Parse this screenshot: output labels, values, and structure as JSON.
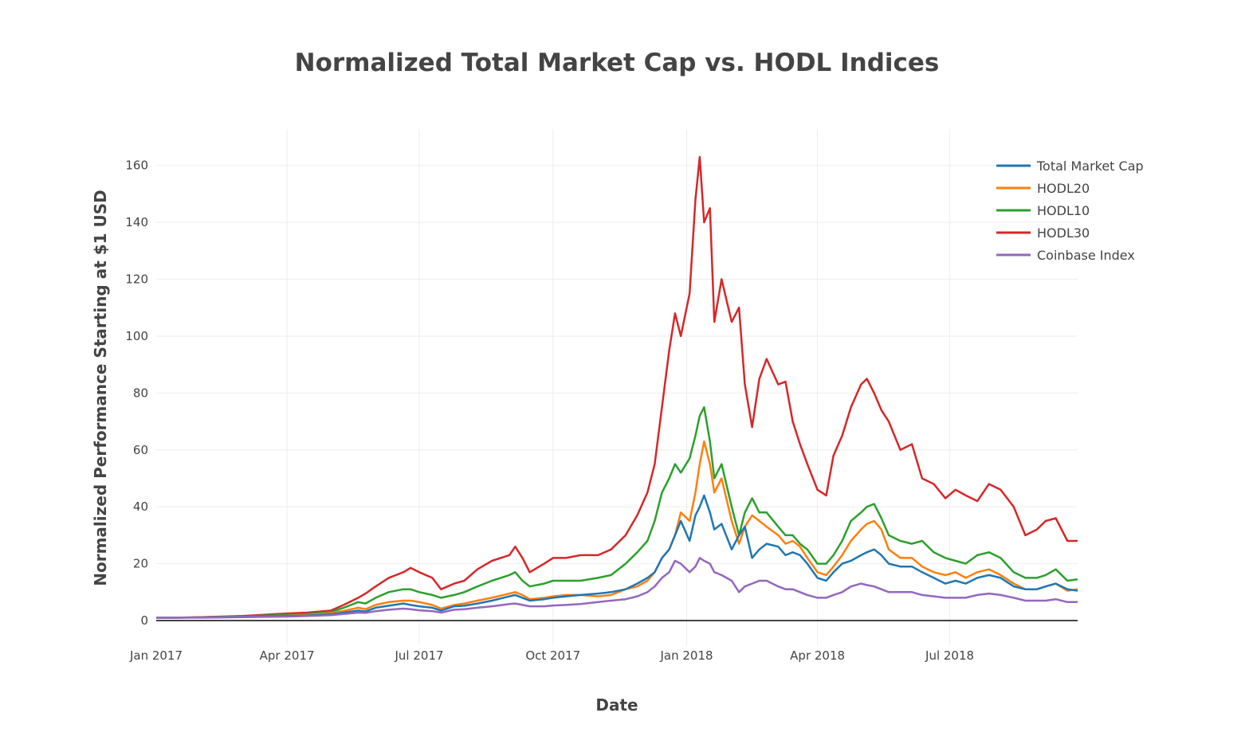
{
  "chart_data": {
    "type": "line",
    "title": "Normalized Total Market Cap vs. HODL Indices",
    "xlabel": "Date",
    "ylabel": "Normalized Performance Starting at $1 USD",
    "xlim": [
      "2017-01-01",
      "2018-09-27"
    ],
    "ylim": [
      0,
      170
    ],
    "grid": true,
    "legend_position": "top-right",
    "x_ticks": [
      {
        "date": "2017-01-01",
        "label": "Jan 2017"
      },
      {
        "date": "2017-04-01",
        "label": "Apr 2017"
      },
      {
        "date": "2017-07-01",
        "label": "Jul 2017"
      },
      {
        "date": "2017-10-01",
        "label": "Oct 2017"
      },
      {
        "date": "2018-01-01",
        "label": "Jan 2018"
      },
      {
        "date": "2018-04-01",
        "label": "Apr 2018"
      },
      {
        "date": "2018-07-01",
        "label": "Jul 2018"
      }
    ],
    "y_ticks": [
      0,
      20,
      40,
      60,
      80,
      100,
      120,
      140,
      160
    ],
    "x": [
      "2017-01-01",
      "2017-01-15",
      "2017-02-01",
      "2017-02-15",
      "2017-03-01",
      "2017-03-15",
      "2017-04-01",
      "2017-04-15",
      "2017-05-01",
      "2017-05-10",
      "2017-05-20",
      "2017-05-25",
      "2017-06-01",
      "2017-06-10",
      "2017-06-20",
      "2017-06-25",
      "2017-07-01",
      "2017-07-10",
      "2017-07-16",
      "2017-07-25",
      "2017-08-01",
      "2017-08-10",
      "2017-08-20",
      "2017-09-01",
      "2017-09-05",
      "2017-09-10",
      "2017-09-15",
      "2017-09-25",
      "2017-10-01",
      "2017-10-10",
      "2017-10-20",
      "2017-11-01",
      "2017-11-10",
      "2017-11-20",
      "2017-11-28",
      "2017-12-05",
      "2017-12-10",
      "2017-12-15",
      "2017-12-20",
      "2017-12-24",
      "2017-12-28",
      "2018-01-03",
      "2018-01-07",
      "2018-01-10",
      "2018-01-13",
      "2018-01-17",
      "2018-01-20",
      "2018-01-25",
      "2018-02-01",
      "2018-02-06",
      "2018-02-10",
      "2018-02-15",
      "2018-02-20",
      "2018-02-25",
      "2018-03-05",
      "2018-03-10",
      "2018-03-15",
      "2018-03-20",
      "2018-03-25",
      "2018-04-01",
      "2018-04-07",
      "2018-04-12",
      "2018-04-18",
      "2018-04-24",
      "2018-05-01",
      "2018-05-05",
      "2018-05-10",
      "2018-05-15",
      "2018-05-20",
      "2018-05-28",
      "2018-06-05",
      "2018-06-12",
      "2018-06-20",
      "2018-06-28",
      "2018-07-05",
      "2018-07-12",
      "2018-07-20",
      "2018-07-28",
      "2018-08-05",
      "2018-08-14",
      "2018-08-22",
      "2018-08-30",
      "2018-09-05",
      "2018-09-12",
      "2018-09-20",
      "2018-09-27"
    ],
    "series": [
      {
        "name": "Total Market Cap",
        "color": "#1f77b4",
        "values": [
          1,
          1,
          1.1,
          1.2,
          1.3,
          1.5,
          1.6,
          1.8,
          2.2,
          2.8,
          3.5,
          3.2,
          4.5,
          5.2,
          6,
          5.5,
          5,
          4.5,
          3.5,
          5,
          5.2,
          6,
          7,
          8.5,
          9,
          8,
          7,
          7.5,
          8,
          8.5,
          9,
          9.5,
          10,
          11,
          13,
          15,
          17,
          22,
          25,
          30,
          35,
          28,
          37,
          40,
          44,
          38,
          32,
          34,
          25,
          30,
          33,
          22,
          25,
          27,
          26,
          23,
          24,
          23,
          20,
          15,
          14,
          17,
          20,
          21,
          23,
          24,
          25,
          23,
          20,
          19,
          19,
          17,
          15,
          13,
          14,
          13,
          15,
          16,
          15,
          12,
          11,
          11,
          12,
          13,
          11,
          10.5
        ]
      },
      {
        "name": "HODL20",
        "color": "#ff7f0e",
        "values": [
          1,
          1,
          1.1,
          1.2,
          1.3,
          1.5,
          1.7,
          2,
          2.6,
          3.4,
          4.5,
          4,
          5.5,
          6.5,
          7,
          7,
          6.5,
          5.5,
          4.2,
          5.5,
          6,
          7,
          8,
          9.5,
          10,
          9,
          7.5,
          8,
          8.5,
          9,
          9,
          8.5,
          9,
          11,
          12,
          14,
          17,
          22,
          25,
          30,
          38,
          35,
          45,
          55,
          63,
          55,
          45,
          50,
          35,
          27,
          33,
          37,
          35,
          33,
          30,
          27,
          28,
          26,
          22,
          17,
          16,
          19,
          23,
          28,
          32,
          34,
          35,
          32,
          25,
          22,
          22,
          19,
          17,
          16,
          17,
          15,
          17,
          18,
          16,
          13,
          11,
          11,
          12,
          13,
          10.5,
          11
        ]
      },
      {
        "name": "HODL10",
        "color": "#2ca02c",
        "values": [
          1,
          1,
          1.1,
          1.3,
          1.4,
          1.7,
          2,
          2.3,
          3,
          4.5,
          6.5,
          6,
          8,
          10,
          11,
          11,
          10,
          9,
          8,
          9,
          10,
          12,
          14,
          16,
          17,
          14,
          12,
          13,
          14,
          14,
          14,
          15,
          16,
          20,
          24,
          28,
          35,
          45,
          50,
          55,
          52,
          57,
          65,
          72,
          75,
          63,
          50,
          55,
          40,
          30,
          38,
          43,
          38,
          38,
          33,
          30,
          30,
          27,
          25,
          20,
          20,
          23,
          28,
          35,
          38,
          40,
          41,
          36,
          30,
          28,
          27,
          28,
          24,
          22,
          21,
          20,
          23,
          24,
          22,
          17,
          15,
          15,
          16,
          18,
          14,
          14.5
        ]
      },
      {
        "name": "HODL30",
        "color": "#d62728",
        "values": [
          1,
          1,
          1.2,
          1.4,
          1.6,
          2,
          2.5,
          2.8,
          3.5,
          5.5,
          8,
          9.5,
          12,
          15,
          17,
          18.5,
          17,
          15,
          11,
          13,
          14,
          18,
          21,
          23,
          26,
          22,
          17,
          20,
          22,
          22,
          23,
          23,
          25,
          30,
          37,
          45,
          55,
          75,
          95,
          108,
          100,
          115,
          148,
          163,
          140,
          145,
          105,
          120,
          105,
          110,
          83,
          68,
          85,
          92,
          83,
          84,
          70,
          62,
          55,
          46,
          44,
          58,
          65,
          75,
          83,
          85,
          80,
          74,
          70,
          60,
          62,
          50,
          48,
          43,
          46,
          44,
          42,
          48,
          46,
          40,
          30,
          32,
          35,
          36,
          28,
          28
        ]
      },
      {
        "name": "Coinbase Index",
        "color": "#9467bd",
        "values": [
          1,
          1,
          1,
          1.1,
          1.2,
          1.3,
          1.4,
          1.6,
          1.9,
          2.3,
          2.8,
          2.7,
          3.3,
          3.8,
          4.2,
          4,
          3.6,
          3.3,
          2.8,
          3.8,
          4,
          4.5,
          5,
          5.8,
          6,
          5.5,
          5,
          5,
          5.3,
          5.5,
          5.8,
          6.5,
          7,
          7.5,
          8.5,
          10,
          12,
          15,
          17,
          21,
          20,
          17,
          19,
          22,
          21,
          20,
          17,
          16,
          14,
          10,
          12,
          13,
          14,
          14,
          12,
          11,
          11,
          10,
          9,
          8,
          8,
          9,
          10,
          12,
          13,
          12.5,
          12,
          11,
          10,
          10,
          10,
          9,
          8.5,
          8,
          8,
          8,
          9,
          9.5,
          9,
          8,
          7,
          7,
          7,
          7.5,
          6.5,
          6.5
        ]
      }
    ]
  }
}
